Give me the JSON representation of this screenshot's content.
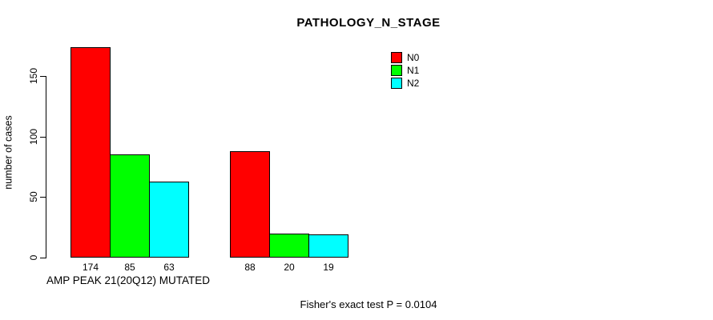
{
  "chart_data": {
    "type": "bar",
    "title": "PATHOLOGY_N_STAGE",
    "xlabel": "",
    "ylabel": "number of cases",
    "ylim": [
      0,
      150
    ],
    "yticks": [
      0,
      50,
      100,
      150
    ],
    "grid": false,
    "legend_position": "top-right",
    "categories": [
      "AMP PEAK 21(20Q12) MUTATED",
      ""
    ],
    "series": [
      {
        "name": "N0",
        "color": "#ff0000",
        "values": [
          174,
          88
        ]
      },
      {
        "name": "N1",
        "color": "#00ff00",
        "values": [
          85,
          20
        ]
      },
      {
        "name": "N2",
        "color": "#00ffff",
        "values": [
          63,
          19
        ]
      }
    ],
    "annotation": "Fisher's exact test P = 0.0104"
  }
}
